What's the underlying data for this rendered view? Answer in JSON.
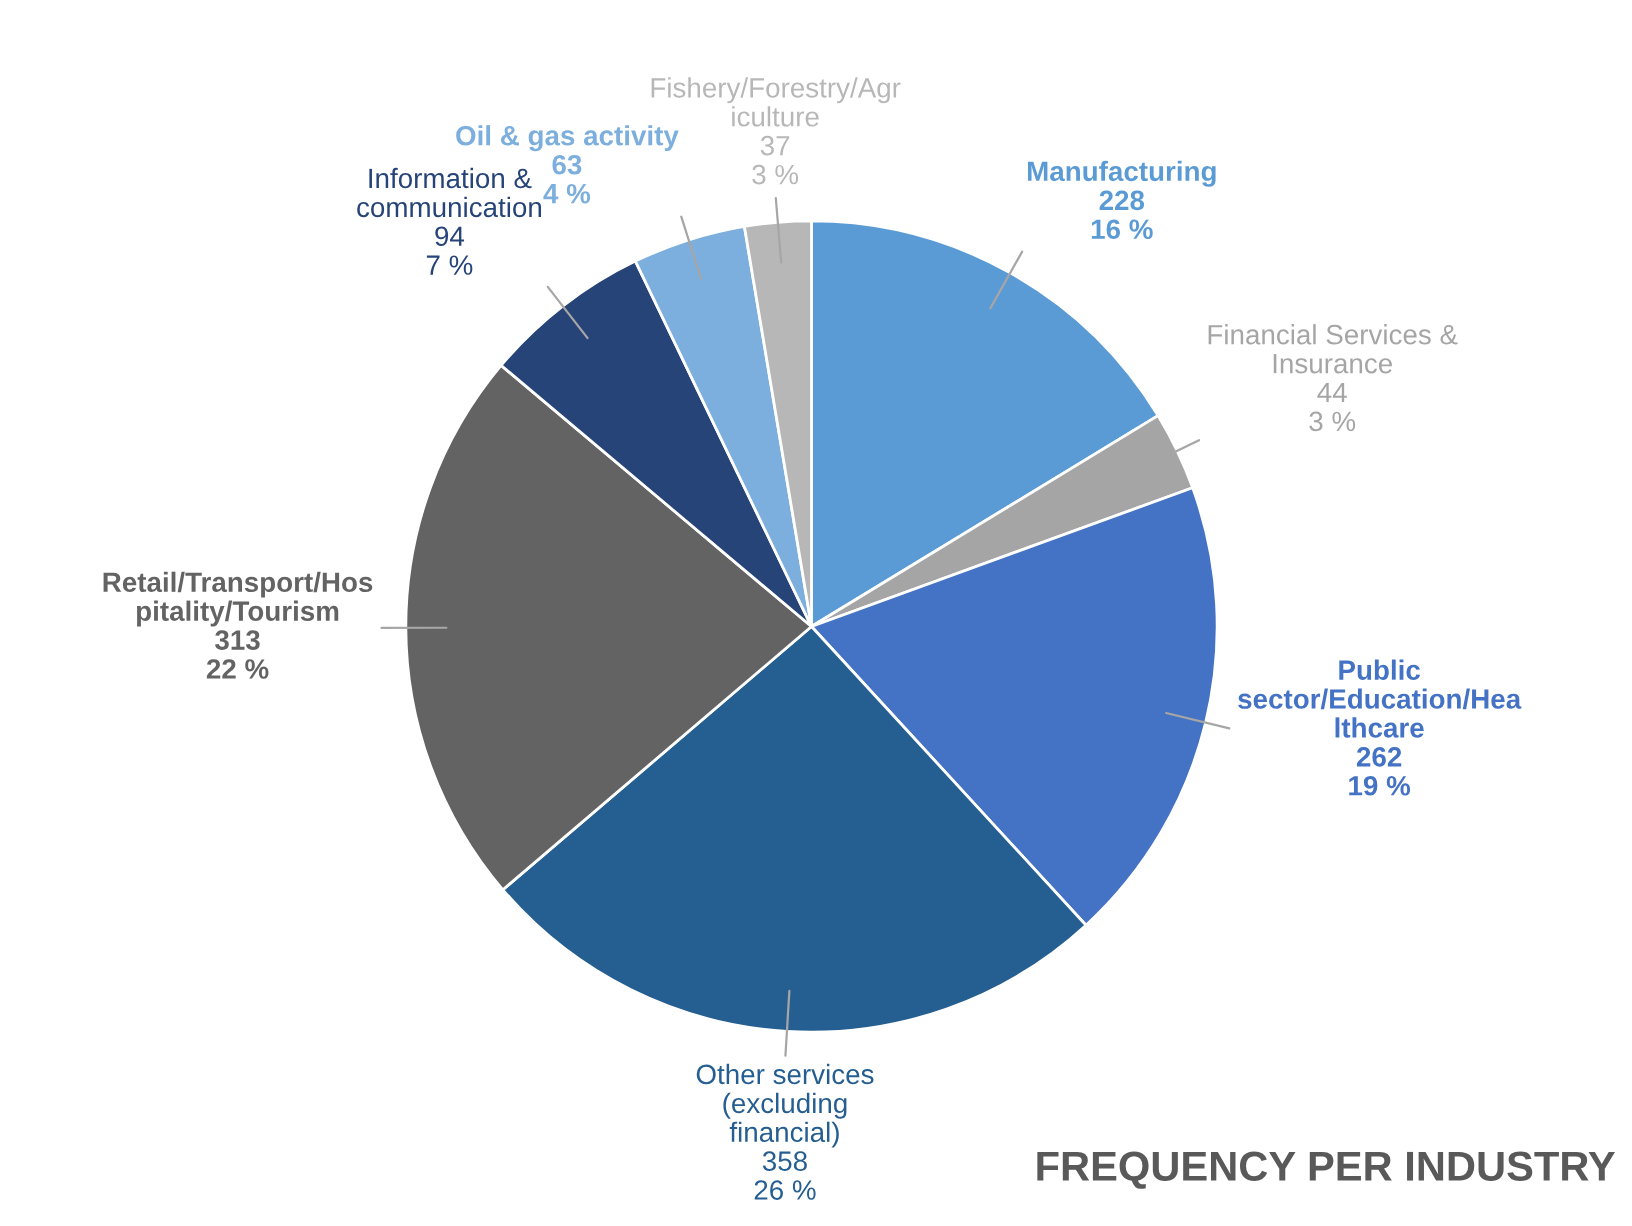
{
  "chart_data": {
    "type": "pie",
    "title": "FREQUENCY PER INDUSTRY",
    "categories": [
      "Manufacturing",
      "Financial Services & Insurance",
      "Public sector/Education/Healthcare",
      "Other services (excluding financial)",
      "Retail/Transport/Hospitality/Tourism",
      "Information & communication",
      "Oil & gas activity",
      "Fishery/Forestry/Agriculture"
    ],
    "values": [
      228,
      44,
      262,
      358,
      313,
      94,
      63,
      37
    ],
    "value_labels": [
      "228\n16 %",
      "44\n3 %",
      "262\n19 %",
      "358\n26 %",
      "313\n22 %",
      "94\n7 %",
      "63\n4 %",
      "37\n3 %"
    ],
    "colors": [
      "#5b9bd5",
      "#a5a5a5",
      "#4472c4",
      "#255e91",
      "#636363",
      "#264478",
      "#7cafdd",
      "#b7b7b7"
    ],
    "legend": false
  }
}
